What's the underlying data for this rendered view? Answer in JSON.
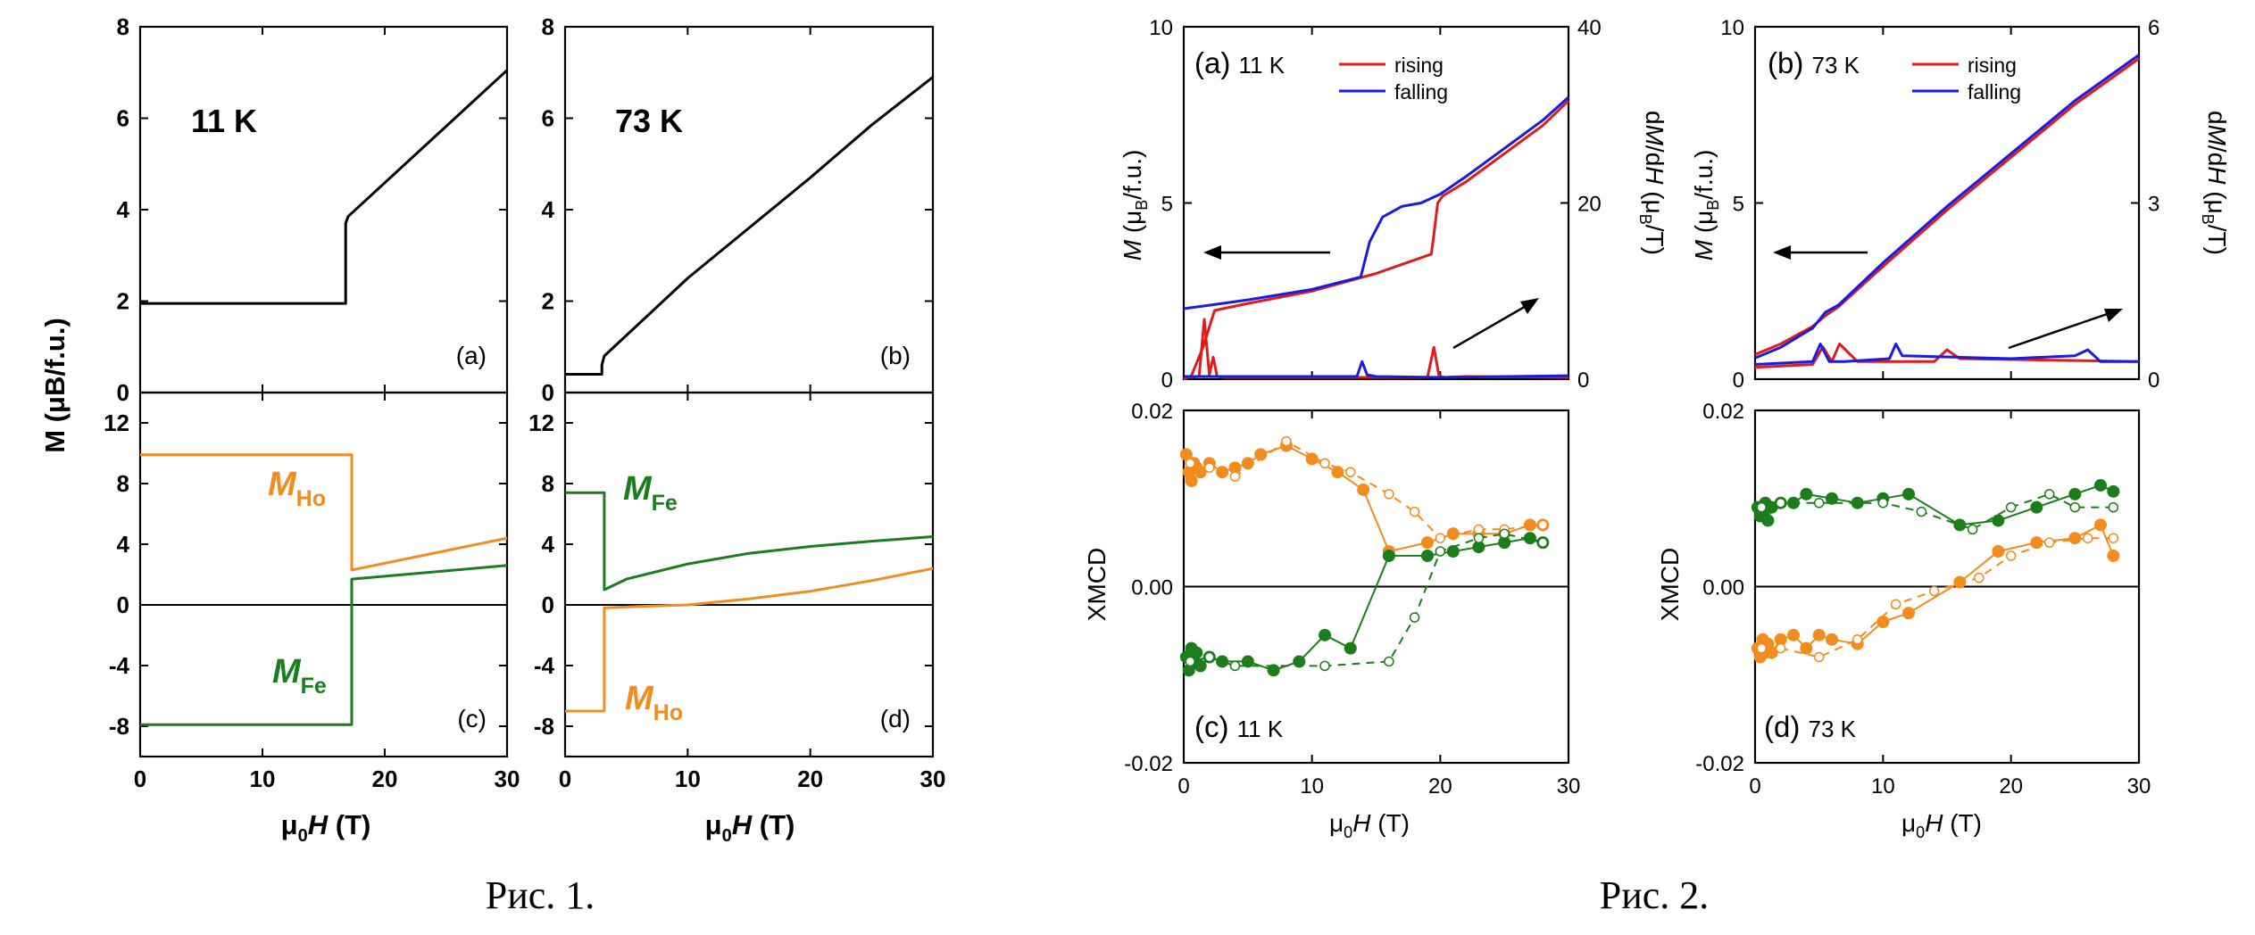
{
  "figures": [
    {
      "caption": "Рис. 1."
    },
    {
      "caption": "Рис. 2."
    }
  ],
  "colors": {
    "ho": "#f28c1f",
    "fe": "#1b7d1b",
    "rising": "#e01b1b",
    "falling": "#1a1ae0",
    "black": "#000000"
  },
  "chart_data": [
    {
      "id": "fig1a",
      "type": "line",
      "panel_label": "(a)",
      "annotation": "11 K",
      "ylabel": "M (μB/f.u.)",
      "xlim": [
        0,
        30
      ],
      "ylim": [
        0,
        8
      ],
      "yticks": [
        0,
        2,
        4,
        6,
        8
      ],
      "xticks": [
        0,
        10,
        20,
        30
      ],
      "series": [
        {
          "color": "#000000",
          "x": [
            0,
            16.8,
            16.8,
            17.0,
            30
          ],
          "y": [
            1.95,
            1.95,
            3.7,
            3.85,
            7.05
          ]
        }
      ]
    },
    {
      "id": "fig1b",
      "type": "line",
      "panel_label": "(b)",
      "annotation": "73 K",
      "ylabel": "",
      "xlim": [
        0,
        30
      ],
      "ylim": [
        0,
        8
      ],
      "yticks": [
        0,
        2,
        4,
        6,
        8
      ],
      "xticks": [
        0,
        10,
        20,
        30
      ],
      "series": [
        {
          "color": "#000000",
          "x": [
            0,
            3.0,
            3.0,
            3.2,
            6,
            10,
            15,
            20,
            25,
            30
          ],
          "y": [
            0.4,
            0.4,
            0.6,
            0.8,
            1.5,
            2.5,
            3.6,
            4.7,
            5.85,
            6.9
          ]
        }
      ]
    },
    {
      "id": "fig1c",
      "type": "line",
      "panel_label": "(c)",
      "xlabel": "μ0H (T)",
      "xlim": [
        0,
        30
      ],
      "ylim": [
        -10,
        14
      ],
      "yticks": [
        -8,
        -4,
        0,
        4,
        8,
        12
      ],
      "xticks": [
        0,
        10,
        20,
        30
      ],
      "series": [
        {
          "name": "MHo",
          "color": "#f28c1f",
          "x": [
            0,
            17.3,
            17.3,
            30
          ],
          "y": [
            9.9,
            9.9,
            2.3,
            4.4
          ]
        },
        {
          "name": "MFe",
          "color": "#1b7d1b",
          "x": [
            0,
            17.3,
            17.3,
            30
          ],
          "y": [
            -7.9,
            -7.9,
            1.7,
            2.6
          ]
        }
      ],
      "reference_line": 0
    },
    {
      "id": "fig1d",
      "type": "line",
      "panel_label": "(d)",
      "xlabel": "μ0H (T)",
      "xlim": [
        0,
        30
      ],
      "ylim": [
        -10,
        14
      ],
      "yticks": [
        -8,
        -4,
        0,
        4,
        8,
        12
      ],
      "xticks": [
        0,
        10,
        20,
        30
      ],
      "series": [
        {
          "name": "MFe",
          "color": "#1b7d1b",
          "x": [
            0,
            3.2,
            3.2,
            5,
            10,
            15,
            20,
            25,
            30
          ],
          "y": [
            7.4,
            7.4,
            1.0,
            1.7,
            2.7,
            3.4,
            3.85,
            4.2,
            4.5
          ]
        },
        {
          "name": "MHo",
          "color": "#f28c1f",
          "x": [
            0,
            3.2,
            3.2,
            6,
            10,
            15,
            20,
            25,
            30
          ],
          "y": [
            -7.0,
            -7.0,
            -0.2,
            -0.1,
            0.0,
            0.4,
            0.9,
            1.6,
            2.4
          ]
        }
      ],
      "reference_line": 0
    },
    {
      "id": "fig2a",
      "type": "line",
      "panel_label": "(a)",
      "annotation": "11 K",
      "ylabel": "M (μB/f.u.)",
      "ylabel_right": "dM/dH (μB/T)",
      "xlim": [
        0,
        30
      ],
      "ylim": [
        0,
        10
      ],
      "ylim_right": [
        0,
        40
      ],
      "yticks": [
        0,
        5,
        10
      ],
      "yticks_right": [
        0,
        20,
        40
      ],
      "xticks": [
        0,
        10,
        20,
        30
      ],
      "legend": "top-right",
      "series": [
        {
          "name": "rising",
          "color": "#e01b1b",
          "x": [
            0.0,
            0.6,
            1.5,
            2.4,
            5,
            10,
            15,
            19.3,
            19.5,
            19.8,
            20.2,
            22,
            25,
            28,
            30
          ],
          "y": [
            0.0,
            0.1,
            0.9,
            1.95,
            2.15,
            2.5,
            3.0,
            3.55,
            4.1,
            5.0,
            5.2,
            5.6,
            6.4,
            7.2,
            7.9
          ]
        },
        {
          "name": "falling",
          "color": "#1a1ae0",
          "x": [
            0,
            2,
            5,
            10,
            13.8,
            14.5,
            15.5,
            17,
            18.5,
            20,
            22,
            25,
            28,
            30
          ],
          "y": [
            2.0,
            2.1,
            2.25,
            2.55,
            2.9,
            3.9,
            4.6,
            4.9,
            5.0,
            5.25,
            5.75,
            6.55,
            7.35,
            8.0
          ]
        },
        {
          "name": "rising dM/dH",
          "color": "#e01b1b",
          "axis": "right",
          "x": [
            0.5,
            1.2,
            1.6,
            2.0,
            2.3,
            2.6,
            3.2,
            10,
            19.0,
            19.5,
            19.9,
            20.3,
            22,
            30
          ],
          "y": [
            0.2,
            0.3,
            6.8,
            0.5,
            2.5,
            0.3,
            0.2,
            0.2,
            0.2,
            3.6,
            0.4,
            0.2,
            0.3,
            0.2
          ]
        },
        {
          "name": "falling dM/dH",
          "color": "#1a1ae0",
          "axis": "right",
          "x": [
            0,
            13.5,
            13.9,
            14.3,
            15.0,
            20,
            30
          ],
          "y": [
            0.3,
            0.3,
            2.0,
            0.5,
            0.3,
            0.2,
            0.4
          ]
        }
      ]
    },
    {
      "id": "fig2b",
      "type": "line",
      "panel_label": "(b)",
      "annotation": "73 K",
      "ylabel": "M (μB/f.u.)",
      "ylabel_right": "dM/dH (μB/T)",
      "xlim": [
        0,
        30
      ],
      "ylim": [
        0,
        10
      ],
      "ylim_right": [
        0,
        6
      ],
      "yticks": [
        0,
        5,
        10
      ],
      "yticks_right": [
        0,
        3,
        6
      ],
      "xticks": [
        0,
        10,
        20,
        30
      ],
      "legend": "top-right",
      "series": [
        {
          "name": "rising",
          "color": "#e01b1b",
          "x": [
            0,
            2,
            4.5,
            5.5,
            6.5,
            10,
            15,
            20,
            25,
            30
          ],
          "y": [
            0.7,
            1.0,
            1.5,
            1.8,
            2.05,
            3.2,
            4.8,
            6.3,
            7.8,
            9.1
          ]
        },
        {
          "name": "falling",
          "color": "#1a1ae0",
          "x": [
            0,
            2,
            4.5,
            5.5,
            6.5,
            10,
            15,
            20,
            25,
            30
          ],
          "y": [
            0.6,
            0.9,
            1.45,
            1.9,
            2.1,
            3.3,
            4.9,
            6.4,
            7.9,
            9.2
          ]
        },
        {
          "name": "rising dM/dH",
          "color": "#e01b1b",
          "axis": "right",
          "x": [
            0,
            4.5,
            5.3,
            6.0,
            6.6,
            8,
            14,
            15,
            16,
            30
          ],
          "y": [
            0.2,
            0.25,
            0.55,
            0.3,
            0.6,
            0.3,
            0.3,
            0.5,
            0.35,
            0.3
          ]
        },
        {
          "name": "falling dM/dH",
          "color": "#1a1ae0",
          "axis": "right",
          "x": [
            0,
            4.5,
            5.1,
            5.8,
            7,
            10.5,
            11.0,
            11.5,
            20,
            25,
            26,
            27,
            30
          ],
          "y": [
            0.25,
            0.3,
            0.6,
            0.3,
            0.3,
            0.35,
            0.6,
            0.4,
            0.35,
            0.4,
            0.5,
            0.3,
            0.3
          ]
        }
      ]
    },
    {
      "id": "fig2c",
      "type": "scatter",
      "panel_label": "(c)",
      "annotation": "11 K",
      "ylabel": "XMCD",
      "xlabel": "μ0H (T)",
      "xlim": [
        0,
        30
      ],
      "ylim": [
        -0.02,
        0.02
      ],
      "yticks": [
        -0.02,
        0.0,
        0.02
      ],
      "ytick_labels": [
        "-0.02",
        "0.00",
        "0.02"
      ],
      "xticks": [
        0,
        10,
        20,
        30
      ],
      "reference_line": 0,
      "series": [
        {
          "name": "Ho rising",
          "color": "#f28c1f",
          "style": "solid-filled",
          "x": [
            0.2,
            0.4,
            0.6,
            0.8,
            1.0,
            1.3,
            2.0,
            3.0,
            4.0,
            5.0,
            6.0,
            8.0,
            10.0,
            12.0,
            14.0,
            16.0,
            19.0,
            21.0,
            23.0,
            25.0,
            27.0,
            28.0
          ],
          "y": [
            0.015,
            0.013,
            0.012,
            0.014,
            0.0135,
            0.013,
            0.014,
            0.013,
            0.0135,
            0.014,
            0.015,
            0.016,
            0.0145,
            0.013,
            0.011,
            0.004,
            0.005,
            0.006,
            0.006,
            0.006,
            0.007,
            0.007
          ]
        },
        {
          "name": "Fe rising",
          "color": "#1b7d1b",
          "style": "solid-filled",
          "x": [
            0.2,
            0.4,
            0.6,
            0.8,
            1.0,
            1.3,
            2.0,
            3.0,
            5.0,
            7.0,
            9.0,
            11.0,
            13.0,
            16.0,
            19.0,
            21.0,
            23.0,
            25.0,
            27.0,
            28.0
          ],
          "y": [
            -0.008,
            -0.0095,
            -0.007,
            -0.0085,
            -0.0075,
            -0.009,
            -0.008,
            -0.0085,
            -0.0085,
            -0.0095,
            -0.0085,
            -0.0055,
            -0.007,
            0.0035,
            0.0035,
            0.004,
            0.0045,
            0.005,
            0.0055,
            0.005
          ]
        },
        {
          "name": "Ho falling",
          "color": "#f28c1f",
          "style": "dashed-open",
          "x": [
            28.0,
            25.0,
            23.0,
            20.0,
            18.0,
            16.0,
            13.0,
            11.0,
            8.0,
            4.0,
            2.0,
            0.5
          ],
          "y": [
            0.007,
            0.0065,
            0.0065,
            0.0055,
            0.0085,
            0.0105,
            0.013,
            0.014,
            0.0165,
            0.0125,
            0.0135,
            0.014
          ]
        },
        {
          "name": "Fe falling",
          "color": "#1b7d1b",
          "style": "dashed-open",
          "x": [
            28.0,
            25.0,
            23.0,
            20.0,
            18.0,
            16.0,
            11.0,
            4.0,
            2.0,
            0.5
          ],
          "y": [
            0.005,
            0.006,
            0.0055,
            0.004,
            -0.0035,
            -0.0085,
            -0.009,
            -0.009,
            -0.008,
            -0.0085
          ]
        }
      ]
    },
    {
      "id": "fig2d",
      "type": "scatter",
      "panel_label": "(d)",
      "annotation": "73 K",
      "ylabel": "XMCD",
      "xlabel": "μ0H (T)",
      "xlim": [
        0,
        30
      ],
      "ylim": [
        -0.02,
        0.02
      ],
      "yticks": [
        -0.02,
        0.0,
        0.02
      ],
      "ytick_labels": [
        "-0.02",
        "0.00",
        "0.02"
      ],
      "xticks": [
        0,
        10,
        20,
        30
      ],
      "reference_line": 0,
      "series": [
        {
          "name": "Fe rising",
          "color": "#1b7d1b",
          "style": "solid-filled",
          "x": [
            0.2,
            0.4,
            0.6,
            0.8,
            1.0,
            1.3,
            2.0,
            3.0,
            4.0,
            6.0,
            8.0,
            10.0,
            12.0,
            16.0,
            19.0,
            22.0,
            25.0,
            27.0,
            28.0
          ],
          "y": [
            0.009,
            0.008,
            0.0085,
            0.0095,
            0.0075,
            0.009,
            0.0095,
            0.0095,
            0.0105,
            0.01,
            0.0095,
            0.01,
            0.0105,
            0.007,
            0.0075,
            0.009,
            0.0105,
            0.0115,
            0.0108
          ]
        },
        {
          "name": "Ho rising",
          "color": "#f28c1f",
          "style": "solid-filled",
          "x": [
            0.2,
            0.4,
            0.6,
            0.8,
            1.0,
            1.3,
            2.0,
            3.0,
            4.0,
            5.0,
            6.0,
            8.0,
            10.0,
            12.0,
            16.0,
            19.0,
            22.0,
            25.0,
            27.0,
            28.0
          ],
          "y": [
            -0.007,
            -0.008,
            -0.006,
            -0.0075,
            -0.0065,
            -0.0075,
            -0.006,
            -0.0055,
            -0.007,
            -0.0055,
            -0.006,
            -0.0065,
            -0.004,
            -0.003,
            0.0005,
            0.004,
            0.005,
            0.0055,
            0.007,
            0.0035
          ]
        },
        {
          "name": "Fe falling",
          "color": "#1b7d1b",
          "style": "dashed-open",
          "x": [
            28.0,
            25.0,
            23.0,
            20.0,
            17.0,
            13.0,
            10.0,
            5.0,
            2.0,
            0.5
          ],
          "y": [
            0.009,
            0.009,
            0.0105,
            0.009,
            0.0065,
            0.0085,
            0.0095,
            0.0095,
            0.0095,
            0.009
          ]
        },
        {
          "name": "Ho falling",
          "color": "#f28c1f",
          "style": "dashed-open",
          "x": [
            28.0,
            26.0,
            23.0,
            20.0,
            17.5,
            14.0,
            11.0,
            8.0,
            5.0,
            2.0,
            0.5
          ],
          "y": [
            0.0055,
            0.0055,
            0.005,
            0.0035,
            0.001,
            -0.0005,
            -0.002,
            -0.006,
            -0.008,
            -0.007,
            -0.007
          ]
        }
      ]
    }
  ]
}
